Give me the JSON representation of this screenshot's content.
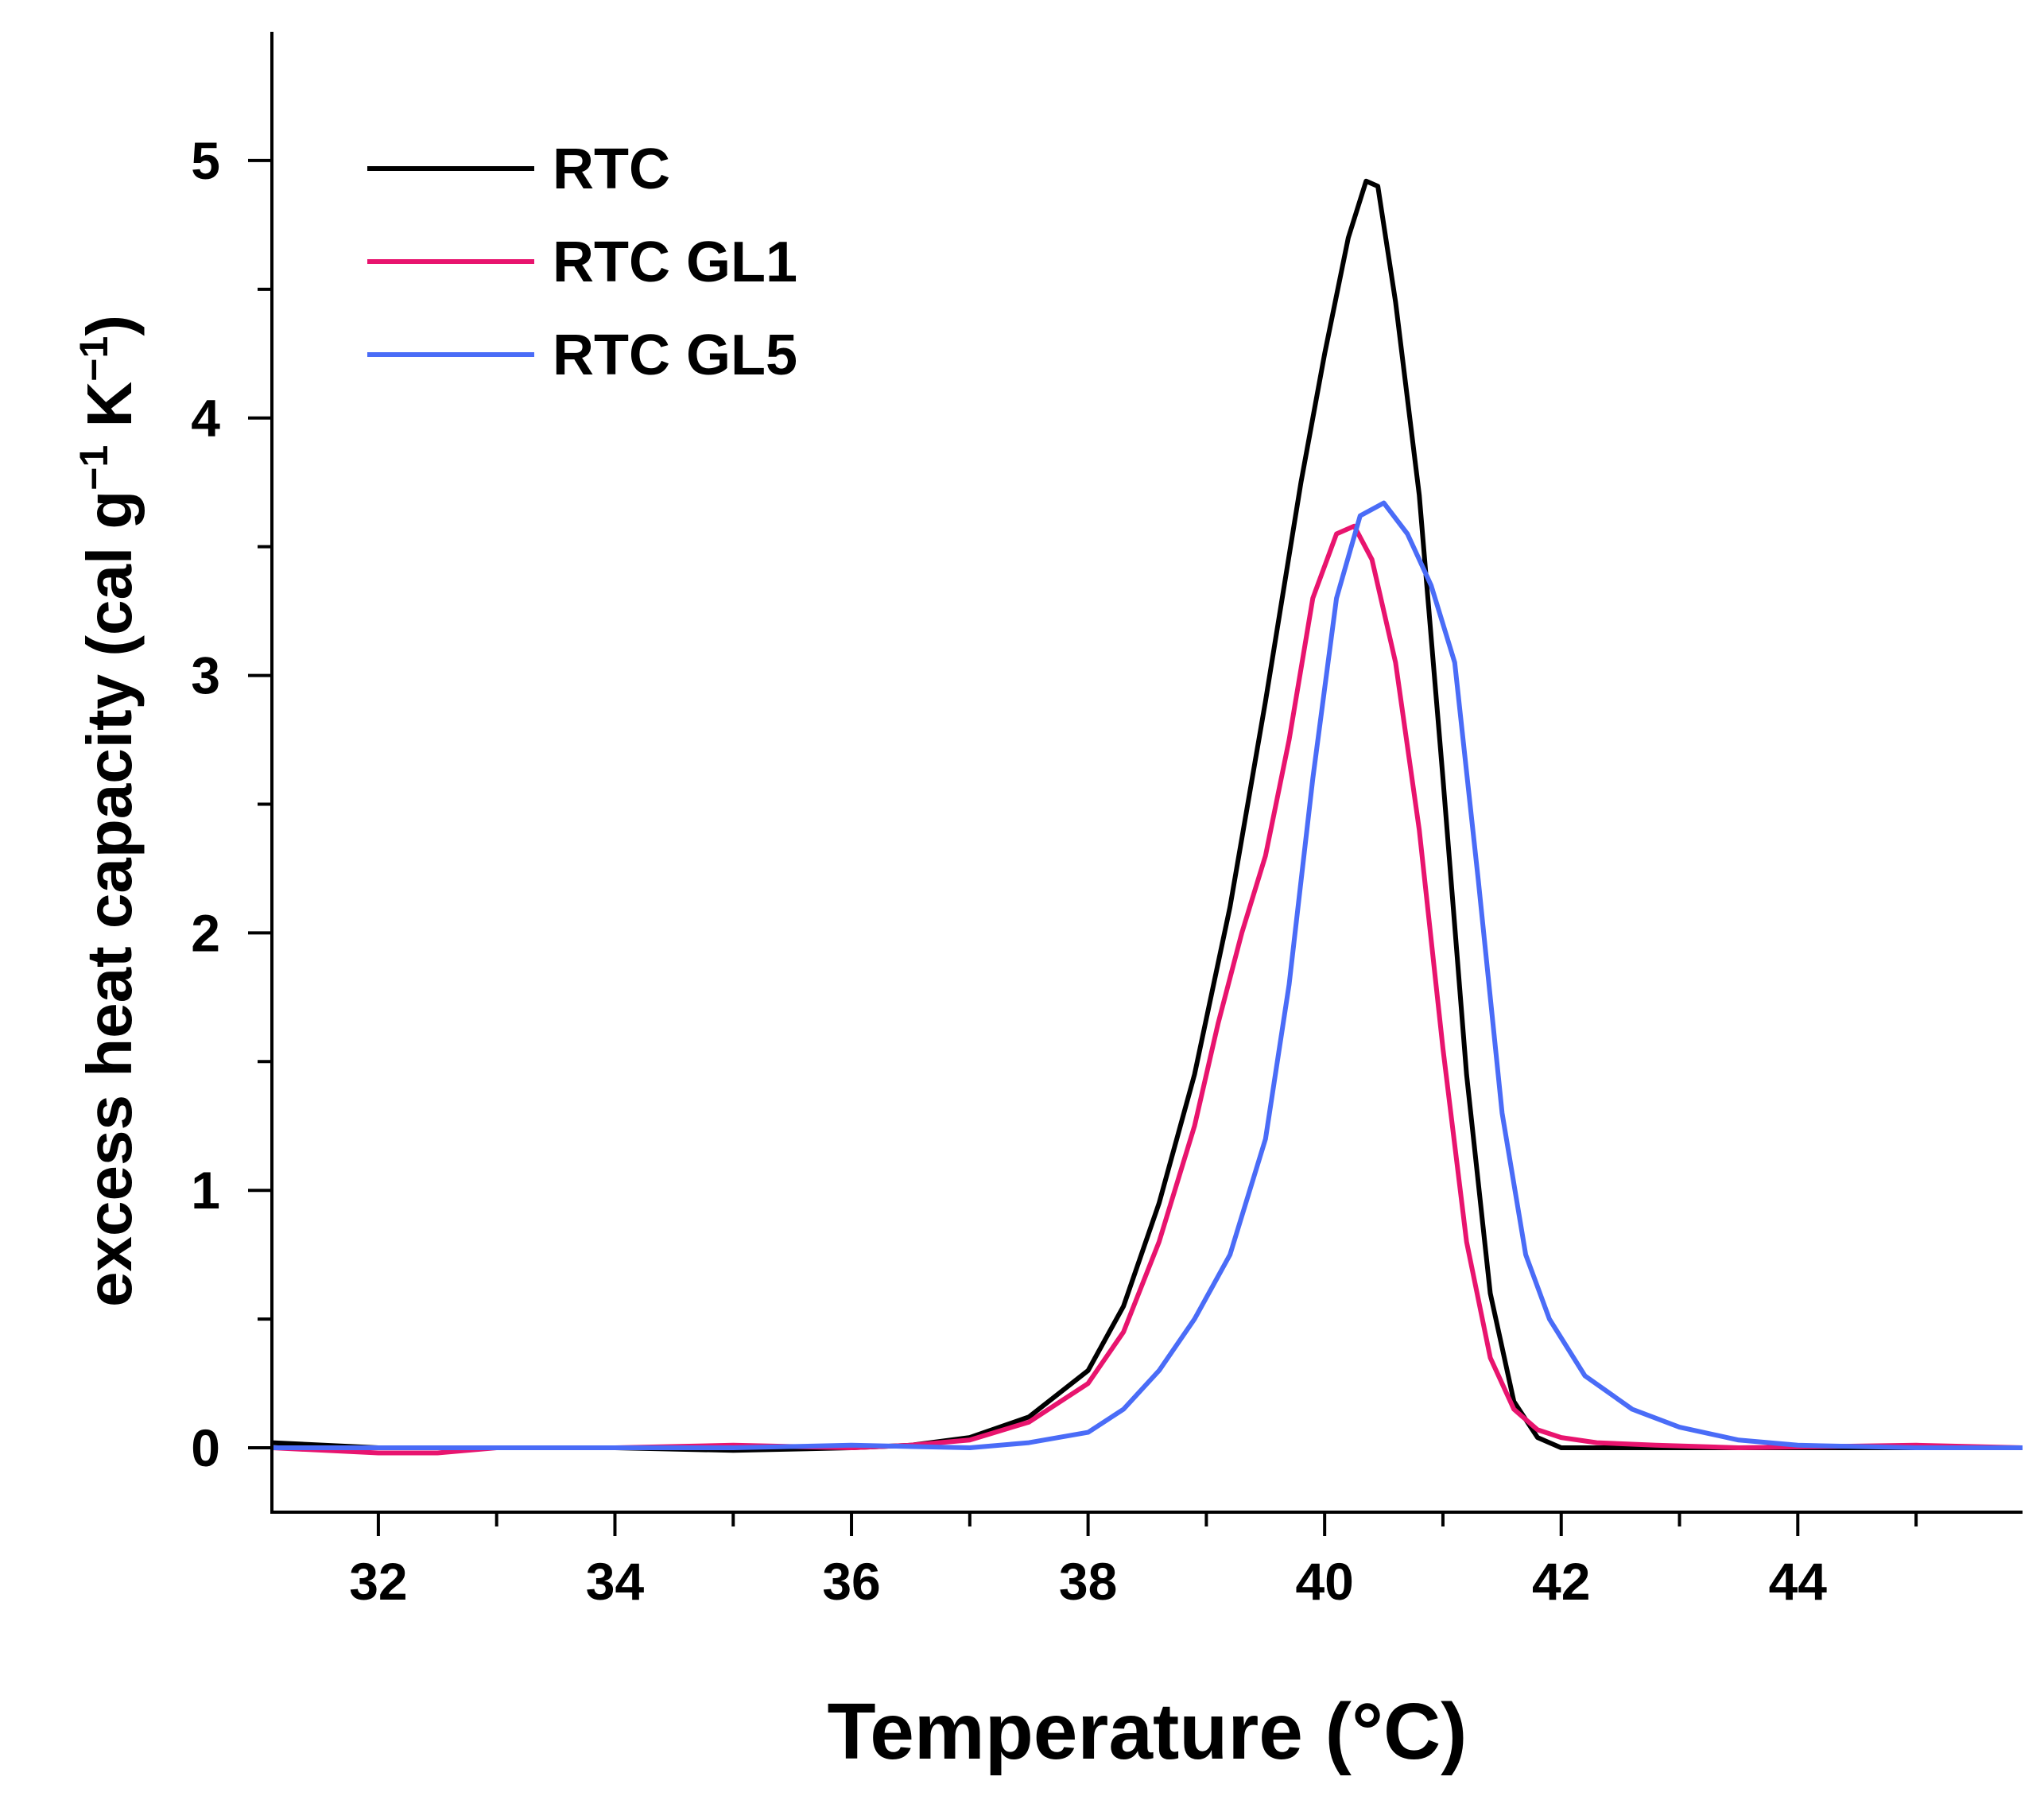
{
  "chart_data": {
    "type": "line",
    "title": "",
    "xlabel": "Temperature (°C)",
    "ylabel": "excess heat capacity (cal g⁻¹ K⁻¹)",
    "ylabel_parts": [
      "excess heat capacity (cal g",
      "−1",
      " K",
      "−1",
      ")"
    ],
    "xlim": [
      31.1,
      45.9
    ],
    "ylim": [
      -0.25,
      5.5
    ],
    "x_ticks": [
      32,
      34,
      36,
      38,
      40,
      42,
      44
    ],
    "x_tick_labels": [
      "32",
      "34",
      "36",
      "38",
      "40",
      "42",
      "44"
    ],
    "y_ticks": [
      0,
      1,
      2,
      3,
      4,
      5
    ],
    "y_tick_labels": [
      "0",
      "1",
      "2",
      "3",
      "4",
      "5"
    ],
    "grid": false,
    "legend_position": "top-left",
    "series": [
      {
        "name": "RTC",
        "color": "#000000",
        "x": [
          31.1,
          32,
          33,
          34,
          35,
          36,
          36.5,
          37,
          37.5,
          38,
          38.3,
          38.6,
          38.9,
          39.2,
          39.5,
          39.8,
          40.0,
          40.2,
          40.35,
          40.45,
          40.6,
          40.8,
          41.0,
          41.2,
          41.4,
          41.6,
          41.8,
          42.0,
          42.3,
          43,
          44,
          45,
          45.9
        ],
        "y": [
          0.02,
          0.0,
          0.0,
          0.0,
          -0.01,
          0.0,
          0.01,
          0.04,
          0.12,
          0.3,
          0.55,
          0.95,
          1.45,
          2.1,
          2.9,
          3.75,
          4.25,
          4.7,
          4.92,
          4.9,
          4.45,
          3.7,
          2.6,
          1.45,
          0.6,
          0.18,
          0.04,
          0.0,
          0.0,
          0.0,
          0.0,
          0.0,
          0.0
        ]
      },
      {
        "name": "RTC GL1",
        "color": "#e8146e",
        "x": [
          31.1,
          32,
          32.5,
          33,
          34,
          35,
          36,
          36.5,
          37,
          37.5,
          38,
          38.3,
          38.6,
          38.9,
          39.1,
          39.3,
          39.5,
          39.7,
          39.9,
          40.1,
          40.25,
          40.4,
          40.6,
          40.8,
          41.0,
          41.2,
          41.4,
          41.6,
          41.8,
          42.0,
          42.3,
          42.8,
          43.5,
          45,
          45.9
        ],
        "y": [
          0.0,
          -0.02,
          -0.02,
          0.0,
          0.0,
          0.01,
          0.0,
          0.01,
          0.03,
          0.1,
          0.25,
          0.45,
          0.8,
          1.25,
          1.65,
          2.0,
          2.3,
          2.75,
          3.3,
          3.55,
          3.58,
          3.45,
          3.05,
          2.4,
          1.55,
          0.8,
          0.35,
          0.15,
          0.07,
          0.04,
          0.02,
          0.01,
          0.0,
          0.01,
          0.0
        ]
      },
      {
        "name": "RTC GL5",
        "color": "#4a6cf7",
        "x": [
          31.1,
          32,
          33,
          34,
          35,
          36,
          37,
          37.5,
          38,
          38.3,
          38.6,
          38.9,
          39.2,
          39.5,
          39.7,
          39.9,
          40.1,
          40.3,
          40.5,
          40.7,
          40.9,
          41.1,
          41.3,
          41.5,
          41.7,
          41.9,
          42.2,
          42.6,
          43,
          43.5,
          44,
          45,
          45.9
        ],
        "y": [
          0.0,
          0.0,
          0.0,
          0.0,
          0.0,
          0.01,
          0.0,
          0.02,
          0.06,
          0.15,
          0.3,
          0.5,
          0.75,
          1.2,
          1.8,
          2.6,
          3.3,
          3.62,
          3.67,
          3.55,
          3.35,
          3.05,
          2.2,
          1.3,
          0.75,
          0.5,
          0.28,
          0.15,
          0.08,
          0.03,
          0.01,
          0.0,
          0.0
        ]
      }
    ]
  }
}
